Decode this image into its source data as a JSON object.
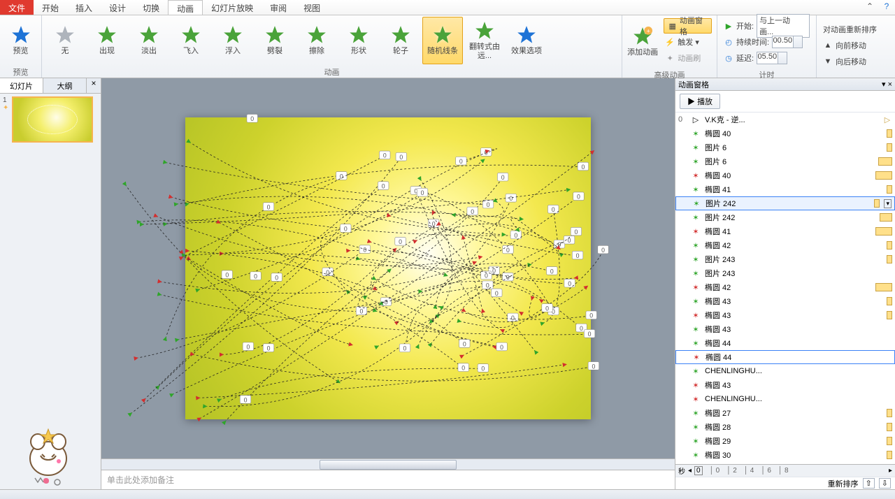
{
  "menu": {
    "file": "文件",
    "tabs": [
      "开始",
      "插入",
      "设计",
      "切换",
      "动画",
      "幻灯片放映",
      "审阅",
      "视图"
    ],
    "active_index": 4
  },
  "ribbon": {
    "preview_group": {
      "btn": "预览",
      "label": "预览",
      "color": "#1e73d6"
    },
    "anim_group": {
      "label": "动画",
      "effects": [
        {
          "cap": "无",
          "color": "#aeb4bc"
        },
        {
          "cap": "出现",
          "color": "#4aa33a"
        },
        {
          "cap": "淡出",
          "color": "#4aa33a"
        },
        {
          "cap": "飞入",
          "color": "#4aa33a"
        },
        {
          "cap": "浮入",
          "color": "#4aa33a"
        },
        {
          "cap": "劈裂",
          "color": "#4aa33a"
        },
        {
          "cap": "擦除",
          "color": "#4aa33a"
        },
        {
          "cap": "形状",
          "color": "#4aa33a"
        },
        {
          "cap": "轮子",
          "color": "#4aa33a"
        },
        {
          "cap": "随机线条",
          "color": "#4aa33a",
          "active": true
        },
        {
          "cap": "翻转式由远...",
          "color": "#4aa33a"
        }
      ],
      "options_btn": "效果选项"
    },
    "adv_group": {
      "label": "高级动画",
      "add_btn": "添加动画",
      "pane_btn": "动画窗格",
      "trigger": "触发 ▾",
      "brush": "动画刷"
    },
    "timing_group": {
      "label": "计时",
      "start_lbl": "开始:",
      "start_val": "与上一动画...",
      "duration_lbl": "持续时间:",
      "duration_val": "00.50",
      "delay_lbl": "延迟:",
      "delay_val": "05.50"
    },
    "reorder_group": {
      "label": "对动画重新排序",
      "up": "向前移动",
      "down": "向后移动"
    }
  },
  "leftpane": {
    "tabs": [
      "幻灯片",
      "大纲"
    ],
    "slide_num": "1"
  },
  "notes_placeholder": "单击此处添加备注",
  "apane": {
    "title": "动画窗格",
    "play": "播放",
    "first_num": "0",
    "first_label": "V.K克 - 逆...",
    "items": [
      {
        "ic": "g",
        "name": "椭圆 40",
        "bw": 8,
        "bx": 160
      },
      {
        "ic": "g",
        "name": "图片 6",
        "bw": 8,
        "bx": 160
      },
      {
        "ic": "g",
        "name": "图片 6",
        "bw": 20,
        "bx": 180
      },
      {
        "ic": "r",
        "name": "椭圆 40",
        "bw": 24,
        "bx": 172
      },
      {
        "ic": "g",
        "name": "椭圆 41",
        "bw": 8,
        "bx": 160
      },
      {
        "ic": "g",
        "name": "图片 242",
        "bw": 8,
        "bx": 190,
        "sel": 1
      },
      {
        "ic": "g",
        "name": "图片 242",
        "bw": 18,
        "bx": 204
      },
      {
        "ic": "r",
        "name": "椭圆 41",
        "bw": 24,
        "bx": 184
      },
      {
        "ic": "g",
        "name": "椭圆 42",
        "bw": 8,
        "bx": 160
      },
      {
        "ic": "g",
        "name": "图片 243",
        "bw": 8,
        "bx": 232
      },
      {
        "ic": "g",
        "name": "图片 243",
        "bw": 0,
        "bx": 0
      },
      {
        "ic": "r",
        "name": "椭圆 42",
        "bw": 24,
        "bx": 214
      },
      {
        "ic": "g",
        "name": "椭圆 43",
        "bw": 8,
        "bx": 236
      },
      {
        "ic": "r",
        "name": "椭圆 43",
        "bw": 8,
        "bx": 240
      },
      {
        "ic": "g",
        "name": "椭圆 43",
        "bw": 0,
        "bx": 0
      },
      {
        "ic": "g",
        "name": "椭圆 44",
        "bw": 0,
        "bx": 0
      },
      {
        "ic": "r",
        "name": "椭圆 44",
        "bw": 0,
        "bx": 0,
        "sel": 2
      },
      {
        "ic": "g",
        "name": "CHENLINGHU...",
        "bw": 0,
        "bx": 0
      },
      {
        "ic": "r",
        "name": "椭圆 43",
        "bw": 0,
        "bx": 0
      },
      {
        "ic": "r",
        "name": "CHENLINGHU...",
        "bw": 0,
        "bx": 0
      },
      {
        "ic": "g",
        "name": "椭圆 27",
        "bw": 8,
        "bx": 104
      },
      {
        "ic": "g",
        "name": "椭圆 28",
        "bw": 8,
        "bx": 108
      },
      {
        "ic": "g",
        "name": "椭圆 29",
        "bw": 8,
        "bx": 112
      },
      {
        "ic": "g",
        "name": "椭圆 30",
        "bw": 8,
        "bx": 114
      }
    ],
    "reorder_label": "重新排序",
    "sec_label": "秒",
    "ticks": [
      "0",
      "2",
      "4",
      "6",
      "8"
    ]
  },
  "colors": {
    "green": "#2fa52a",
    "red": "#d22e2e"
  }
}
